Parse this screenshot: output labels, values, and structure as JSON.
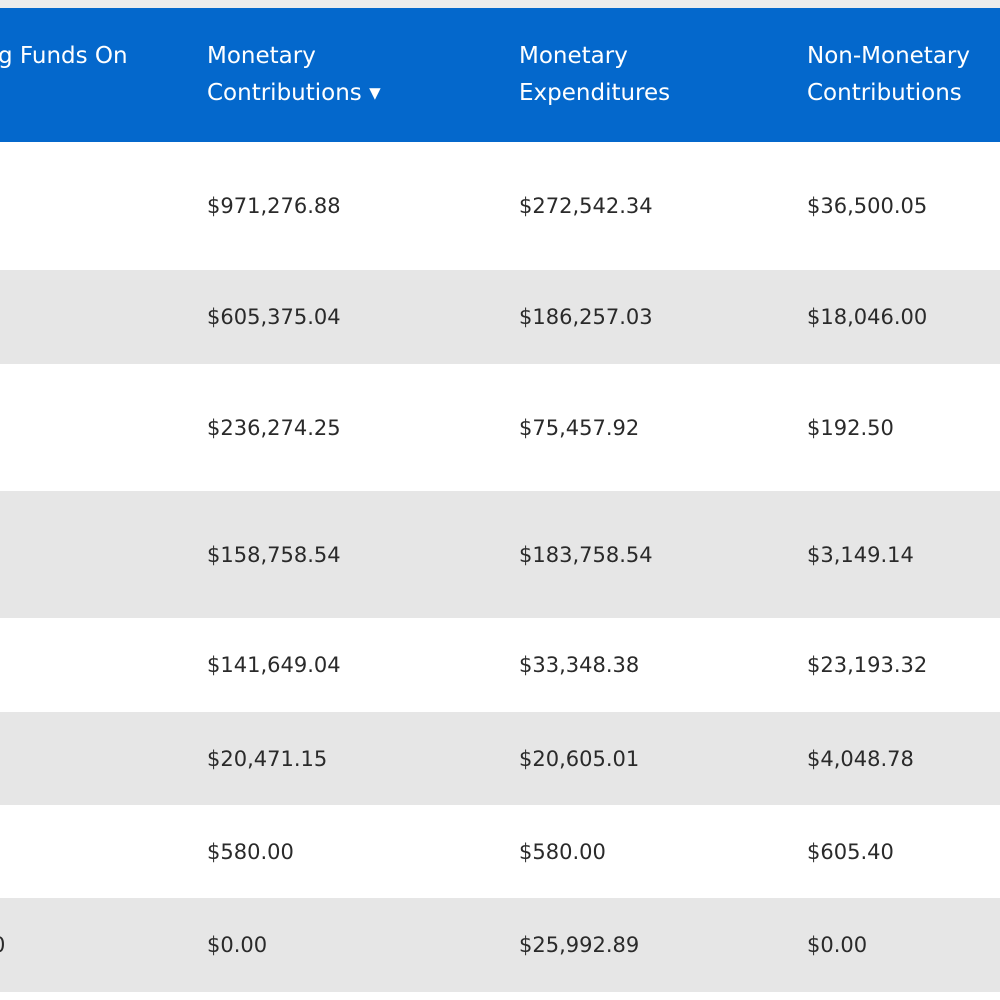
{
  "table": {
    "headers": [
      "g Funds On",
      "Monetary Contributions ▾",
      "Monetary Expenditures",
      "Non-Monetary Contributions"
    ],
    "rows": [
      {
        "cells": [
          "$971,276.88",
          "$272,542.34",
          "$36,500.05"
        ]
      },
      {
        "cells": [
          "$605,375.04",
          "$186,257.03",
          "$18,046.00"
        ]
      },
      {
        "cells": [
          "$236,274.25",
          "$75,457.92",
          "$192.50"
        ]
      },
      {
        "cells": [
          "$158,758.54",
          "$183,758.54",
          "$3,149.14"
        ]
      },
      {
        "cells": [
          "$141,649.04",
          "$33,348.38",
          "$23,193.32"
        ]
      },
      {
        "cells": [
          "$20,471.15",
          "$20,605.01",
          "$4,048.78"
        ]
      },
      {
        "cells": [
          "$580.00",
          "$580.00",
          "$605.40"
        ]
      },
      {
        "lead": "0",
        "cells": [
          "$0.00",
          "$25,992.89",
          "$0.00"
        ]
      }
    ]
  }
}
